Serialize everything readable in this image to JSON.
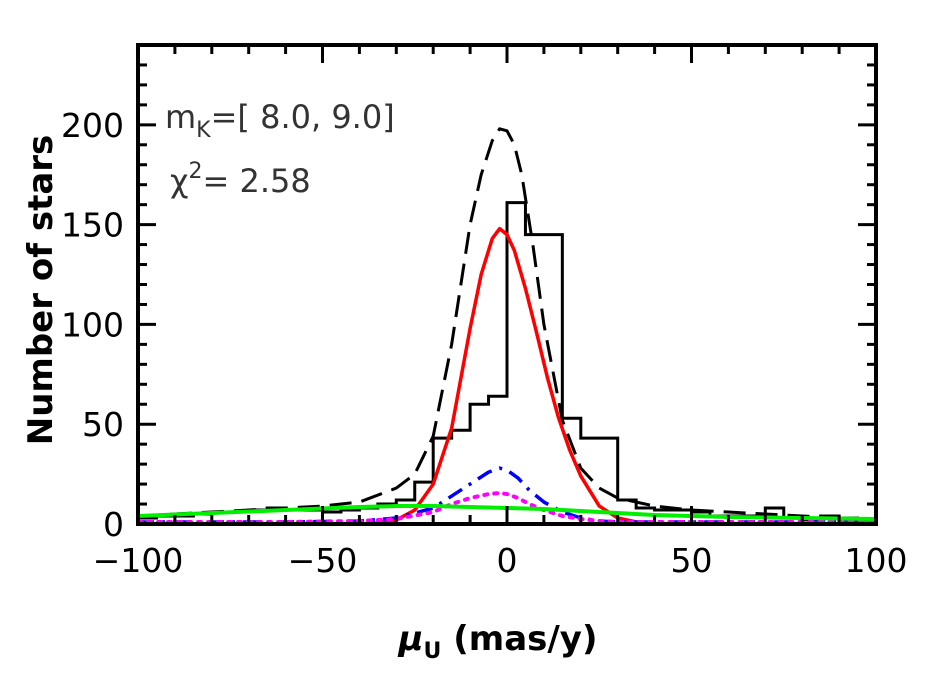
{
  "chart_data": {
    "type": "line",
    "xlabel_symbol": "μ",
    "xlabel_sub": "U",
    "xlabel_rest": " (mas/y)",
    "ylabel": "Number of stars",
    "xlim": [
      -100,
      100
    ],
    "ylim": [
      0,
      240
    ],
    "xticks": [
      -100,
      -50,
      0,
      50,
      100
    ],
    "xtick_labels": [
      "−100",
      "−50",
      "0",
      "50",
      "100"
    ],
    "yticks": [
      0,
      50,
      100,
      150,
      200
    ],
    "ytick_labels": [
      "0",
      "50",
      "100",
      "150",
      "200"
    ],
    "annotation_mk": {
      "m": "m",
      "sub": "K",
      "text": "=[ 8.0, 9.0]"
    },
    "annotation_chi": {
      "chi": "χ",
      "sup": "2",
      "text": "= 2.58"
    },
    "histogram": {
      "color": "#000000",
      "edges": [
        -100,
        -95,
        -90,
        -85,
        -80,
        -75,
        -70,
        -65,
        -60,
        -55,
        -50,
        -45,
        -40,
        -35,
        -30,
        -25,
        -20,
        -15,
        -10,
        -5,
        0,
        5,
        10,
        15,
        20,
        25,
        30,
        35,
        40,
        45,
        50,
        55,
        60,
        65,
        70,
        75,
        80,
        85,
        90,
        95,
        100
      ],
      "counts": [
        3,
        4,
        4,
        5,
        6,
        6,
        7,
        8,
        7,
        7,
        6,
        7,
        8,
        10,
        12,
        21,
        43,
        47,
        60,
        64,
        161,
        145,
        145,
        53,
        43,
        43,
        12,
        8,
        7,
        7,
        6,
        4,
        4,
        4,
        8,
        3,
        2,
        4,
        3,
        2
      ]
    },
    "series": [
      {
        "style": "dashed",
        "color": "#000000",
        "width": 3,
        "x": [
          -100,
          -90,
          -80,
          -70,
          -60,
          -50,
          -40,
          -30,
          -25,
          -20,
          -15,
          -10,
          -7,
          -4,
          -2,
          0,
          2,
          4,
          7,
          10,
          15,
          20,
          25,
          30,
          40,
          50,
          60,
          70,
          80,
          90,
          100
        ],
        "y": [
          4,
          5,
          6,
          7,
          8,
          9,
          11,
          18,
          25,
          44,
          90,
          150,
          175,
          192,
          198,
          197,
          190,
          175,
          140,
          100,
          52,
          28,
          18,
          13,
          9,
          7,
          6,
          5,
          4,
          3,
          2
        ]
      },
      {
        "style": "solid",
        "color": "#ff0000",
        "width": 3.5,
        "x": [
          -40,
          -35,
          -30,
          -25,
          -20,
          -15,
          -10,
          -7,
          -4,
          -2,
          0,
          2,
          5,
          8,
          11,
          14,
          17,
          20,
          25,
          30,
          35,
          40
        ],
        "y": [
          0,
          0.5,
          2,
          7,
          20,
          48,
          98,
          125,
          143,
          148,
          145,
          137,
          118,
          96,
          73,
          53,
          37,
          24,
          9,
          3,
          1,
          0
        ]
      },
      {
        "style": "dashdot",
        "color": "#0000ff",
        "width": 3.5,
        "x": [
          -100,
          -60,
          -40,
          -30,
          -20,
          -15,
          -10,
          -5,
          -2,
          0,
          3,
          6,
          10,
          15,
          20,
          25,
          30,
          40,
          60,
          100
        ],
        "y": [
          1,
          1,
          1.5,
          3,
          8,
          14,
          20,
          26,
          28,
          27,
          23,
          17,
          11,
          6,
          3,
          1.5,
          1,
          1,
          1,
          1
        ]
      },
      {
        "style": "dotted",
        "color": "#ff00ff",
        "width": 4,
        "x": [
          -100,
          -60,
          -40,
          -30,
          -20,
          -15,
          -10,
          -5,
          -2,
          0,
          3,
          6,
          10,
          15,
          20,
          25,
          30,
          40,
          60,
          100
        ],
        "y": [
          1,
          1,
          1.5,
          2.5,
          6,
          10,
          13,
          15,
          15.5,
          15,
          13,
          10,
          7,
          4,
          2.5,
          1.5,
          1,
          1,
          1,
          1
        ]
      },
      {
        "style": "solid",
        "color": "#00ee00",
        "width": 4,
        "x": [
          -100,
          -80,
          -60,
          -40,
          -30,
          -20,
          -10,
          0,
          10,
          20,
          30,
          40,
          60,
          80,
          100
        ],
        "y": [
          4,
          5.5,
          7,
          8.5,
          9,
          9,
          8.5,
          8,
          7.5,
          6.5,
          5.5,
          4.5,
          3.5,
          3,
          2.5
        ]
      }
    ]
  }
}
